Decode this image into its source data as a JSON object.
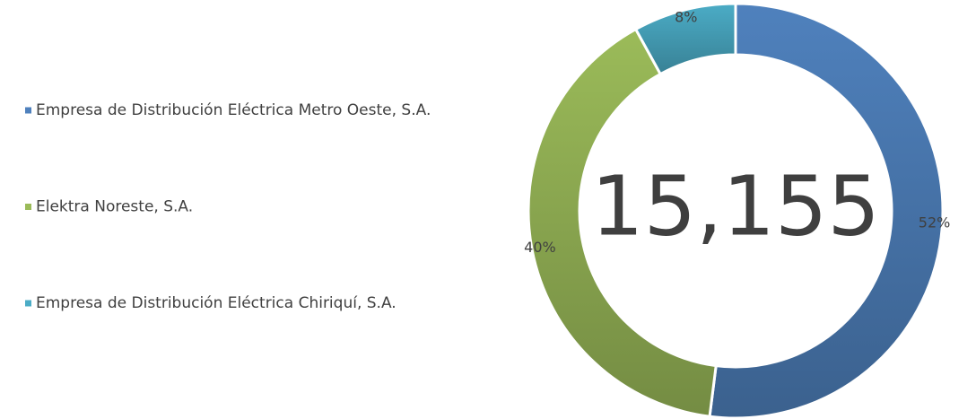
{
  "chart_data": {
    "type": "donut",
    "categories": [
      "Empresa de Distribución Eléctrica Metro Oeste, S.A.",
      "Elektra Noreste, S.A.",
      "Empresa de Distribución Eléctrica Chiriquí, S.A."
    ],
    "values": [
      52,
      40,
      8
    ],
    "value_labels": [
      "52%",
      "40%",
      "8%"
    ],
    "colors": [
      "#4f81bd",
      "#9bbb59",
      "#4bacc6"
    ],
    "center_text": "15,155",
    "legend": "left"
  }
}
